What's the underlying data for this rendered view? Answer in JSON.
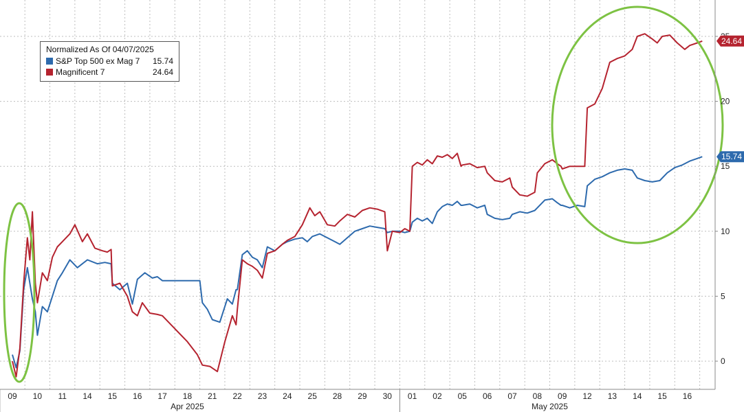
{
  "chart_data": {
    "type": "line",
    "title": "",
    "xlabel": "",
    "ylabel": "",
    "ylim": [
      -2,
      27
    ],
    "yticks": [
      "0",
      "5",
      "10",
      "15",
      "20",
      "25"
    ],
    "grid": true,
    "legend_position": "top-left",
    "legend_title": "Normalized As Of 04/07/2025",
    "x_day_labels": [
      "09",
      "10",
      "11",
      "14",
      "15",
      "16",
      "17",
      "18",
      "21",
      "22",
      "23",
      "24",
      "25",
      "28",
      "29",
      "30",
      "01",
      "02",
      "05",
      "06",
      "07",
      "08",
      "09",
      "12",
      "13",
      "14",
      "15",
      "16"
    ],
    "month_labels": [
      "Apr 2025",
      "May 2025"
    ],
    "series": [
      {
        "name": "S&P Top 500 ex Mag 7",
        "color": "#2d6aad",
        "last_value": "15.74",
        "points": [
          [
            0,
            0.5
          ],
          [
            0.15,
            -0.5
          ],
          [
            0.3,
            0.8
          ],
          [
            0.45,
            5.5
          ],
          [
            0.6,
            7.2
          ],
          [
            0.8,
            4.8
          ],
          [
            0.92,
            3.8
          ],
          [
            1,
            2.0
          ],
          [
            1.2,
            4.2
          ],
          [
            1.4,
            3.8
          ],
          [
            1.6,
            5.0
          ],
          [
            1.8,
            6.2
          ],
          [
            2,
            6.8
          ],
          [
            2.3,
            7.8
          ],
          [
            2.6,
            7.2
          ],
          [
            3,
            7.8
          ],
          [
            3.4,
            7.5
          ],
          [
            3.7,
            7.6
          ],
          [
            3.95,
            7.5
          ],
          [
            4,
            6.0
          ],
          [
            4.3,
            5.5
          ],
          [
            4.6,
            6.0
          ],
          [
            4.8,
            4.4
          ],
          [
            5,
            6.3
          ],
          [
            5.3,
            6.8
          ],
          [
            5.6,
            6.4
          ],
          [
            5.8,
            6.5
          ],
          [
            6,
            6.2
          ],
          [
            6.5,
            6.2
          ],
          [
            7,
            6.2
          ],
          [
            7.5,
            6.2
          ],
          [
            7.6,
            4.5
          ],
          [
            7.8,
            4.0
          ],
          [
            8,
            3.2
          ],
          [
            8.3,
            3.0
          ],
          [
            8.6,
            4.8
          ],
          [
            8.8,
            4.4
          ],
          [
            8.95,
            5.5
          ],
          [
            9,
            5.5
          ],
          [
            9.2,
            8.2
          ],
          [
            9.4,
            8.5
          ],
          [
            9.6,
            8.0
          ],
          [
            9.8,
            7.8
          ],
          [
            10,
            7.2
          ],
          [
            10.2,
            8.8
          ],
          [
            10.5,
            8.5
          ],
          [
            10.8,
            9.0
          ],
          [
            11,
            9.2
          ],
          [
            11.3,
            9.4
          ],
          [
            11.6,
            9.5
          ],
          [
            11.8,
            9.2
          ],
          [
            12,
            9.6
          ],
          [
            12.3,
            9.8
          ],
          [
            12.6,
            9.5
          ],
          [
            12.9,
            9.2
          ],
          [
            13.1,
            9.0
          ],
          [
            13.4,
            9.5
          ],
          [
            13.7,
            10.0
          ],
          [
            14,
            10.2
          ],
          [
            14.3,
            10.4
          ],
          [
            14.6,
            10.3
          ],
          [
            14.9,
            10.2
          ],
          [
            15,
            9.9
          ],
          [
            15.2,
            10.0
          ],
          [
            15.5,
            10.0
          ],
          [
            15.7,
            9.9
          ],
          [
            15.9,
            10.0
          ],
          [
            16,
            10.7
          ],
          [
            16.2,
            11.0
          ],
          [
            16.4,
            10.8
          ],
          [
            16.6,
            11.0
          ],
          [
            16.8,
            10.6
          ],
          [
            17,
            11.5
          ],
          [
            17.2,
            11.9
          ],
          [
            17.4,
            12.1
          ],
          [
            17.6,
            12.0
          ],
          [
            17.8,
            12.3
          ],
          [
            17.95,
            12.0
          ],
          [
            18,
            12.0
          ],
          [
            18.3,
            12.1
          ],
          [
            18.6,
            11.8
          ],
          [
            18.9,
            12.0
          ],
          [
            19,
            11.3
          ],
          [
            19.3,
            11.0
          ],
          [
            19.6,
            10.9
          ],
          [
            19.9,
            11.0
          ],
          [
            20,
            11.3
          ],
          [
            20.3,
            11.5
          ],
          [
            20.6,
            11.4
          ],
          [
            20.9,
            11.6
          ],
          [
            21,
            11.8
          ],
          [
            21.3,
            12.4
          ],
          [
            21.6,
            12.5
          ],
          [
            21.8,
            12.2
          ],
          [
            21.95,
            12.0
          ],
          [
            22,
            12.0
          ],
          [
            22.3,
            11.8
          ],
          [
            22.6,
            12.0
          ],
          [
            22.9,
            11.9
          ],
          [
            23,
            13.5
          ],
          [
            23.3,
            14.0
          ],
          [
            23.6,
            14.2
          ],
          [
            23.9,
            14.5
          ],
          [
            24.2,
            14.7
          ],
          [
            24.5,
            14.8
          ],
          [
            24.8,
            14.7
          ],
          [
            25,
            14.1
          ],
          [
            25.3,
            13.9
          ],
          [
            25.6,
            13.8
          ],
          [
            25.9,
            13.9
          ],
          [
            26.2,
            14.5
          ],
          [
            26.5,
            14.9
          ],
          [
            26.8,
            15.1
          ],
          [
            27.1,
            15.4
          ],
          [
            27.4,
            15.6
          ],
          [
            27.6,
            15.74
          ]
        ]
      },
      {
        "name": "Magnificent 7",
        "color": "#b5232f",
        "last_value": "24.64",
        "points": [
          [
            0,
            0
          ],
          [
            0.15,
            -1.2
          ],
          [
            0.3,
            1.0
          ],
          [
            0.45,
            6.0
          ],
          [
            0.6,
            9.5
          ],
          [
            0.7,
            7.8
          ],
          [
            0.8,
            11.5
          ],
          [
            0.92,
            6.0
          ],
          [
            1,
            4.5
          ],
          [
            1.2,
            6.8
          ],
          [
            1.4,
            6.2
          ],
          [
            1.6,
            8.0
          ],
          [
            1.8,
            8.8
          ],
          [
            2,
            9.2
          ],
          [
            2.3,
            9.8
          ],
          [
            2.5,
            10.5
          ],
          [
            2.8,
            9.2
          ],
          [
            3,
            9.8
          ],
          [
            3.3,
            8.7
          ],
          [
            3.6,
            8.5
          ],
          [
            3.8,
            8.4
          ],
          [
            3.95,
            8.6
          ],
          [
            4,
            5.8
          ],
          [
            4.3,
            6.0
          ],
          [
            4.6,
            5.0
          ],
          [
            4.8,
            3.8
          ],
          [
            5,
            3.5
          ],
          [
            5.2,
            4.5
          ],
          [
            5.5,
            3.7
          ],
          [
            5.8,
            3.6
          ],
          [
            6,
            3.5
          ],
          [
            6.5,
            2.5
          ],
          [
            7,
            1.5
          ],
          [
            7.4,
            0.5
          ],
          [
            7.6,
            -0.3
          ],
          [
            7.9,
            -0.4
          ],
          [
            8.2,
            -0.8
          ],
          [
            8.5,
            1.5
          ],
          [
            8.8,
            3.5
          ],
          [
            8.95,
            2.8
          ],
          [
            9,
            4.0
          ],
          [
            9.2,
            7.8
          ],
          [
            9.4,
            7.5
          ],
          [
            9.6,
            7.3
          ],
          [
            9.8,
            7.0
          ],
          [
            10,
            6.4
          ],
          [
            10.2,
            8.3
          ],
          [
            10.5,
            8.5
          ],
          [
            10.8,
            9.0
          ],
          [
            11,
            9.3
          ],
          [
            11.3,
            9.6
          ],
          [
            11.6,
            10.5
          ],
          [
            11.9,
            11.8
          ],
          [
            12.1,
            11.2
          ],
          [
            12.3,
            11.5
          ],
          [
            12.6,
            10.5
          ],
          [
            12.9,
            10.4
          ],
          [
            13.1,
            10.8
          ],
          [
            13.4,
            11.3
          ],
          [
            13.7,
            11.1
          ],
          [
            14,
            11.6
          ],
          [
            14.3,
            11.8
          ],
          [
            14.6,
            11.7
          ],
          [
            14.9,
            11.5
          ],
          [
            15,
            8.5
          ],
          [
            15.2,
            10.0
          ],
          [
            15.5,
            9.9
          ],
          [
            15.7,
            10.2
          ],
          [
            15.9,
            10.0
          ],
          [
            16,
            15.0
          ],
          [
            16.2,
            15.3
          ],
          [
            16.4,
            15.1
          ],
          [
            16.6,
            15.5
          ],
          [
            16.8,
            15.2
          ],
          [
            17,
            15.8
          ],
          [
            17.2,
            15.7
          ],
          [
            17.4,
            15.9
          ],
          [
            17.6,
            15.6
          ],
          [
            17.8,
            16.0
          ],
          [
            17.95,
            15.0
          ],
          [
            18,
            15.1
          ],
          [
            18.3,
            15.2
          ],
          [
            18.6,
            14.9
          ],
          [
            18.9,
            15.0
          ],
          [
            19,
            14.5
          ],
          [
            19.3,
            13.9
          ],
          [
            19.6,
            13.8
          ],
          [
            19.9,
            14.1
          ],
          [
            20,
            13.4
          ],
          [
            20.3,
            12.8
          ],
          [
            20.6,
            12.7
          ],
          [
            20.9,
            13.0
          ],
          [
            21,
            14.5
          ],
          [
            21.3,
            15.2
          ],
          [
            21.6,
            15.5
          ],
          [
            21.8,
            15.2
          ],
          [
            21.95,
            15.0
          ],
          [
            22,
            14.8
          ],
          [
            22.3,
            15.0
          ],
          [
            22.6,
            15.0
          ],
          [
            22.9,
            15.0
          ],
          [
            23,
            19.5
          ],
          [
            23.3,
            19.8
          ],
          [
            23.6,
            21.0
          ],
          [
            23.9,
            23.0
          ],
          [
            24.2,
            23.3
          ],
          [
            24.5,
            23.5
          ],
          [
            24.8,
            24.0
          ],
          [
            25,
            25.0
          ],
          [
            25.3,
            25.2
          ],
          [
            25.6,
            24.8
          ],
          [
            25.8,
            24.5
          ],
          [
            26,
            25.0
          ],
          [
            26.3,
            25.1
          ],
          [
            26.6,
            24.5
          ],
          [
            26.9,
            24.0
          ],
          [
            27.1,
            24.3
          ],
          [
            27.4,
            24.5
          ],
          [
            27.6,
            24.64
          ]
        ]
      }
    ]
  }
}
